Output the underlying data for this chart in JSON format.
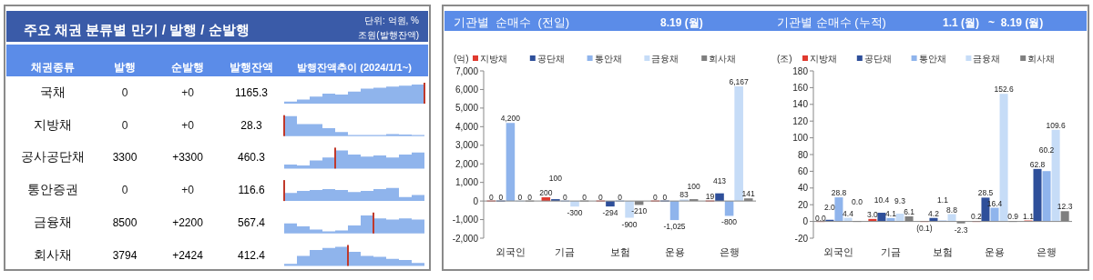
{
  "chart_data": [
    {
      "type": "other",
      "title": "주요 채권 분류별 만기 / 발행 / 순발행",
      "annotations": [
        "단위: 억원, %",
        "조원(발행잔액)",
        "발행잔액추이 (2024/1/1~)"
      ],
      "xlabel": "채권종류",
      "categories": [
        "국채",
        "지방채",
        "공사공단채",
        "통안증권",
        "금융채",
        "회사채"
      ],
      "data_labels": true,
      "series": [
        {
          "name": "발행",
          "values": [
            0,
            0,
            3300,
            0,
            8500,
            3794
          ]
        },
        {
          "name": "순발행",
          "values": [
            0,
            0,
            3300,
            0,
            2200,
            2424
          ],
          "value_labels": [
            "+0",
            "+0",
            "+3300",
            "+0",
            "+2200",
            "+2424"
          ]
        },
        {
          "name": "발행잔액",
          "values": [
            1165.3,
            28.3,
            460.3,
            116.6,
            567.4,
            412.4
          ]
        }
      ]
    },
    {
      "type": "bar",
      "title": "기관별  순매수  (전일)",
      "subtitle": "8.19 (월)",
      "ylabel": "(억)",
      "categories": [
        "외국인",
        "기금",
        "보험",
        "운용",
        "은행"
      ],
      "legend": "top",
      "ylim": [
        -2000,
        7000
      ],
      "yticks": [
        {
          "value": -2000,
          "label": "-2,000"
        },
        {
          "value": -1000,
          "label": "-1,000"
        },
        0,
        {
          "value": 1000,
          "label": "1,000"
        },
        {
          "value": 2000,
          "label": "2,000"
        },
        {
          "value": 3000,
          "label": "3,000"
        },
        {
          "value": 4000,
          "label": "4,000"
        },
        {
          "value": 5000,
          "label": "5,000"
        },
        {
          "value": 6000,
          "label": "6,000"
        },
        {
          "value": 7000,
          "label": "7,000"
        }
      ],
      "series": [
        {
          "name": "지방채",
          "color": "#e03a2f",
          "values": [
            0,
            200,
            0,
            0,
            19
          ],
          "value_labels": [
            "0",
            "200",
            "0",
            "0",
            "19"
          ]
        },
        {
          "name": "공단채",
          "color": "#2e4f9a",
          "values": [
            0,
            100,
            -294,
            0,
            413
          ],
          "value_labels": [
            "0",
            "100",
            "-294",
            "0",
            "413"
          ]
        },
        {
          "name": "통안채",
          "color": "#8fb4ec",
          "values": [
            4200,
            0,
            0,
            -1025,
            -800
          ],
          "value_labels": [
            "4,200",
            "0",
            "0",
            "-1,025",
            "-800"
          ]
        },
        {
          "name": "금융채",
          "color": "#c6dcf7",
          "values": [
            0,
            -300,
            -900,
            83,
            6167
          ],
          "value_labels": [
            "0",
            "-300",
            "-900",
            "83",
            "6,167"
          ]
        },
        {
          "name": "회사채",
          "color": "#7f7f7f",
          "values": [
            0,
            0,
            -210,
            100,
            141
          ],
          "value_labels": [
            "0",
            "0",
            "-210",
            "100",
            "141"
          ]
        }
      ]
    },
    {
      "type": "bar",
      "title": "기관별 순매수 (누적)",
      "subtitle": "1.1 (월)   ~  8.19 (월)",
      "ylabel": "(조)",
      "categories": [
        "외국인",
        "기금",
        "보험",
        "운용",
        "은행"
      ],
      "legend": "top",
      "ylim": [
        -20,
        180
      ],
      "yticks": [
        -20,
        0,
        20,
        40,
        60,
        80,
        100,
        120,
        140,
        160,
        180
      ],
      "series": [
        {
          "name": "지방채",
          "color": "#e03a2f",
          "values": [
            0.0,
            3.0,
            -0.1,
            0.2,
            1.1
          ],
          "value_labels": [
            "0.0",
            "3.0",
            "(0.1)",
            "0.2",
            "1.1"
          ]
        },
        {
          "name": "공단채",
          "color": "#2e4f9a",
          "values": [
            2.0,
            10.4,
            4.2,
            28.5,
            62.8
          ],
          "value_labels": [
            "2.0",
            "10.4",
            "4.2",
            "28.5",
            "62.8"
          ]
        },
        {
          "name": "통안채",
          "color": "#8fb4ec",
          "values": [
            28.8,
            4.1,
            1.1,
            16.4,
            60.2
          ],
          "value_labels": [
            "28.8",
            "4.1",
            "1.1",
            "16.4",
            "60.2"
          ]
        },
        {
          "name": "금융채",
          "color": "#c6dcf7",
          "values": [
            4.4,
            9.3,
            8.8,
            152.6,
            109.6
          ],
          "value_labels": [
            "4.4",
            "9.3",
            "8.8",
            "152.6",
            "109.6"
          ]
        },
        {
          "name": "회사채",
          "color": "#7f7f7f",
          "values": [
            0.0,
            6.1,
            -2.3,
            0.9,
            12.3
          ],
          "value_labels": [
            "0.0",
            "6.1",
            "-2.3",
            "0.9",
            "12.3"
          ]
        }
      ]
    }
  ]
}
